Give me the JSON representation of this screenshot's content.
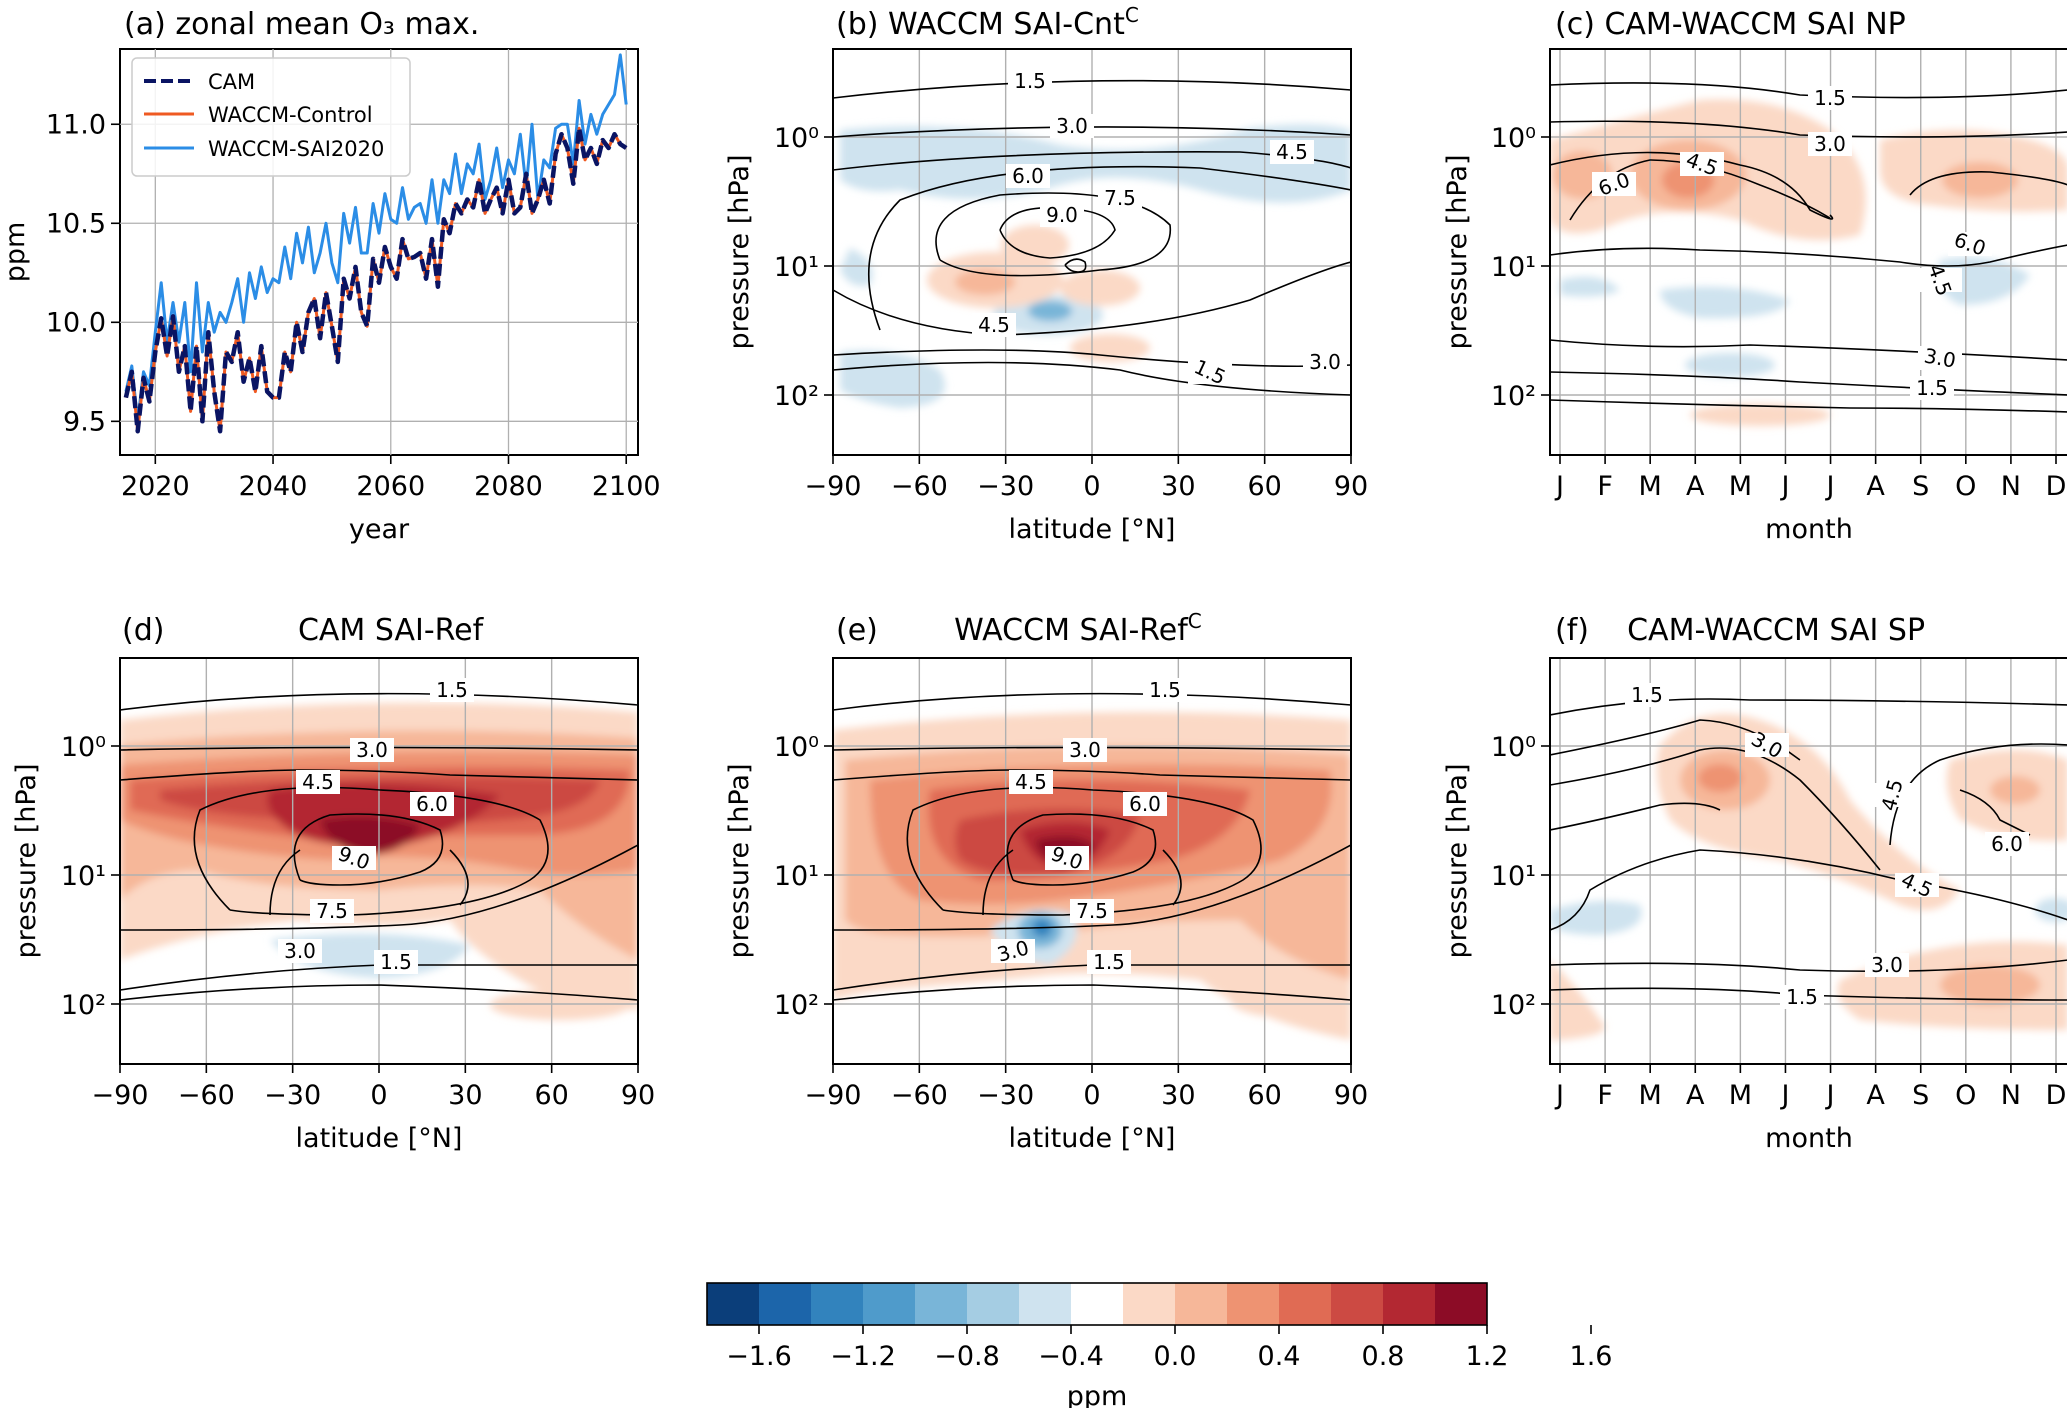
{
  "colors": {
    "cam": "#0a1463",
    "control": "#ef5a22",
    "sai": "#2b8de6",
    "grid": "#b0b0b0",
    "contour": "#000000",
    "palette": [
      "#0b3e7a",
      "#1c65aa",
      "#3283bd",
      "#4f9bcb",
      "#79b5d8",
      "#a5cde3",
      "#cfe3ef",
      "#ffffff",
      "#fbd9c6",
      "#f6b799",
      "#ee9372",
      "#e06b54",
      "#cc4a43",
      "#b32832",
      "#8c0c26"
    ]
  },
  "colorbar": {
    "ticks": [
      "−1.6",
      "−1.2",
      "−0.8",
      "−0.4",
      "0.0",
      "0.4",
      "0.8",
      "1.2",
      "1.6"
    ],
    "label": "ppm"
  },
  "chart_data": [
    {
      "id": "a",
      "type": "line",
      "title": "(a)   zonal mean O₃ max.",
      "xlabel": "year",
      "ylabel": "ppm",
      "xlim": [
        2014,
        2102
      ],
      "ylim": [
        9.33,
        11.38
      ],
      "xticks": [
        2020,
        2040,
        2060,
        2080,
        2100
      ],
      "xtick_labels": [
        "2020",
        "2040",
        "2060",
        "2080",
        "2100"
      ],
      "yticks": [
        9.5,
        10.0,
        10.5,
        11.0
      ],
      "ytick_labels": [
        "9.5",
        "10.0",
        "10.5",
        "11.0"
      ],
      "legend_position": "top-left",
      "x": [
        2015,
        2016,
        2017,
        2018,
        2019,
        2020,
        2021,
        2022,
        2023,
        2024,
        2025,
        2026,
        2027,
        2028,
        2029,
        2030,
        2031,
        2032,
        2033,
        2034,
        2035,
        2036,
        2037,
        2038,
        2039,
        2040,
        2041,
        2042,
        2043,
        2044,
        2045,
        2046,
        2047,
        2048,
        2049,
        2050,
        2051,
        2052,
        2053,
        2054,
        2055,
        2056,
        2057,
        2058,
        2059,
        2060,
        2061,
        2062,
        2063,
        2064,
        2065,
        2066,
        2067,
        2068,
        2069,
        2070,
        2071,
        2072,
        2073,
        2074,
        2075,
        2076,
        2077,
        2078,
        2079,
        2080,
        2081,
        2082,
        2083,
        2084,
        2085,
        2086,
        2087,
        2088,
        2089,
        2090,
        2091,
        2092,
        2093,
        2094,
        2095,
        2096,
        2097,
        2098,
        2099,
        2100
      ],
      "series": [
        {
          "name": "CAM",
          "style": "dashed",
          "values": [
            9.62,
            9.75,
            9.45,
            9.72,
            9.6,
            9.85,
            10.02,
            9.83,
            10.03,
            9.75,
            9.88,
            9.55,
            9.88,
            9.5,
            9.95,
            9.65,
            9.45,
            9.85,
            9.8,
            9.95,
            9.7,
            9.82,
            9.65,
            9.88,
            9.65,
            9.62,
            9.62,
            9.85,
            9.75,
            10.0,
            9.85,
            10.05,
            10.12,
            9.92,
            10.15,
            9.98,
            9.8,
            10.22,
            10.12,
            10.28,
            10.05,
            9.98,
            10.32,
            10.2,
            10.38,
            10.28,
            10.22,
            10.42,
            10.32,
            10.33,
            10.35,
            10.22,
            10.42,
            10.18,
            10.52,
            10.45,
            10.6,
            10.55,
            10.62,
            10.58,
            10.72,
            10.55,
            10.62,
            10.68,
            10.55,
            10.72,
            10.55,
            10.58,
            10.75,
            10.55,
            10.62,
            10.72,
            10.6,
            10.85,
            10.95,
            10.88,
            10.7,
            10.98,
            10.82,
            10.88,
            10.8,
            10.92,
            10.88,
            10.95,
            10.9,
            10.88
          ]
        },
        {
          "name": "WACCM-Control",
          "style": "solid",
          "values": [
            9.62,
            9.75,
            9.45,
            9.72,
            9.6,
            9.85,
            10.02,
            9.83,
            10.03,
            9.75,
            9.88,
            9.55,
            9.88,
            9.5,
            9.95,
            9.65,
            9.45,
            9.85,
            9.8,
            9.95,
            9.7,
            9.82,
            9.65,
            9.88,
            9.65,
            9.62,
            9.62,
            9.85,
            9.75,
            10.0,
            9.85,
            10.05,
            10.12,
            9.92,
            10.15,
            9.98,
            9.8,
            10.22,
            10.12,
            10.28,
            10.05,
            9.98,
            10.32,
            10.2,
            10.38,
            10.28,
            10.22,
            10.42,
            10.32,
            10.33,
            10.35,
            10.22,
            10.42,
            10.18,
            10.52,
            10.45,
            10.6,
            10.55,
            10.62,
            10.58,
            10.72,
            10.55,
            10.62,
            10.68,
            10.55,
            10.72,
            10.55,
            10.58,
            10.75,
            10.55,
            10.62,
            10.72,
            10.6,
            10.85,
            10.95,
            10.88,
            10.7,
            10.98,
            10.82,
            10.88,
            10.8,
            10.92,
            10.88,
            10.95,
            10.9,
            10.88
          ]
        },
        {
          "name": "WACCM-SAI2020",
          "style": "solid",
          "values": [
            9.65,
            9.78,
            9.5,
            9.75,
            9.68,
            9.95,
            10.2,
            9.9,
            10.1,
            9.9,
            10.1,
            9.75,
            10.2,
            9.85,
            10.1,
            9.95,
            10.05,
            10.0,
            10.1,
            10.22,
            10.0,
            10.25,
            10.12,
            10.28,
            10.15,
            10.22,
            10.2,
            10.38,
            10.22,
            10.45,
            10.3,
            10.48,
            10.25,
            10.35,
            10.5,
            10.3,
            10.2,
            10.55,
            10.4,
            10.58,
            10.35,
            10.35,
            10.6,
            10.45,
            10.65,
            10.52,
            10.5,
            10.68,
            10.52,
            10.58,
            10.6,
            10.5,
            10.72,
            10.5,
            10.72,
            10.65,
            10.85,
            10.65,
            10.8,
            10.75,
            10.9,
            10.62,
            10.72,
            10.88,
            10.68,
            10.82,
            10.75,
            10.95,
            10.68,
            11.0,
            10.62,
            10.82,
            10.78,
            10.98,
            11.0,
            11.0,
            10.8,
            11.12,
            10.9,
            11.05,
            10.95,
            11.05,
            11.1,
            11.15,
            11.35,
            11.1
          ]
        }
      ]
    },
    {
      "id": "b",
      "type": "contour",
      "title": "(b)        WACCM SAI-Cnt",
      "title_sup": "C",
      "xlabel": "latitude [°N]",
      "ylabel": "pressure [hPa]",
      "xticks": [
        "−90",
        "−60",
        "−30",
        "0",
        "30",
        "60",
        "90"
      ],
      "yticks": [
        "10⁰",
        "10¹",
        "10²"
      ],
      "contour_labels": [
        "1.5",
        "3.0",
        "4.5",
        "6.0",
        "7.5",
        "9.0",
        "4.5",
        "1.5",
        "3.0"
      ]
    },
    {
      "id": "c",
      "type": "contour",
      "title": "(c)   CAM-WACCM SAI NP",
      "xlabel": "month",
      "ylabel": "pressure [hPa]",
      "xticks": [
        "J",
        "F",
        "M",
        "A",
        "M",
        "J",
        "J",
        "A",
        "S",
        "O",
        "N",
        "D"
      ],
      "yticks": [
        "10⁰",
        "10¹",
        "10²"
      ],
      "contour_labels": [
        "1.5",
        "3.0",
        "4.5",
        "6.0",
        "6.0",
        "4.5",
        "3.0",
        "1.5"
      ]
    },
    {
      "id": "d",
      "type": "contour",
      "title": "(d)              CAM SAI-Ref",
      "xlabel": "latitude [°N]",
      "ylabel": "pressure [hPa]",
      "xticks": [
        "−90",
        "−60",
        "−30",
        "0",
        "30",
        "60",
        "90"
      ],
      "yticks": [
        "10⁰",
        "10¹",
        "10²"
      ],
      "contour_labels": [
        "1.5",
        "3.0",
        "4.5",
        "6.0",
        "9.0",
        "7.5",
        "3.0",
        "1.5"
      ]
    },
    {
      "id": "e",
      "type": "contour",
      "title": "(e)        WACCM SAI-Ref",
      "title_sup": "C",
      "xlabel": "latitude [°N]",
      "ylabel": "pressure [hPa]",
      "xticks": [
        "−90",
        "−60",
        "−30",
        "0",
        "30",
        "60",
        "90"
      ],
      "yticks": [
        "10⁰",
        "10¹",
        "10²"
      ],
      "contour_labels": [
        "1.5",
        "3.0",
        "4.5",
        "6.0",
        "9.0",
        "7.5",
        "3.0",
        "1.5"
      ]
    },
    {
      "id": "f",
      "type": "contour",
      "title": "(f)    CAM-WACCM SAI SP",
      "xlabel": "month",
      "ylabel": "pressure [hPa]",
      "xticks": [
        "J",
        "F",
        "M",
        "A",
        "M",
        "J",
        "J",
        "A",
        "S",
        "O",
        "N",
        "D"
      ],
      "yticks": [
        "10⁰",
        "10¹",
        "10²"
      ],
      "contour_labels": [
        "1.5",
        "3.0",
        "4.5",
        "6.0",
        "4.5",
        "3.0",
        "1.5"
      ]
    }
  ]
}
